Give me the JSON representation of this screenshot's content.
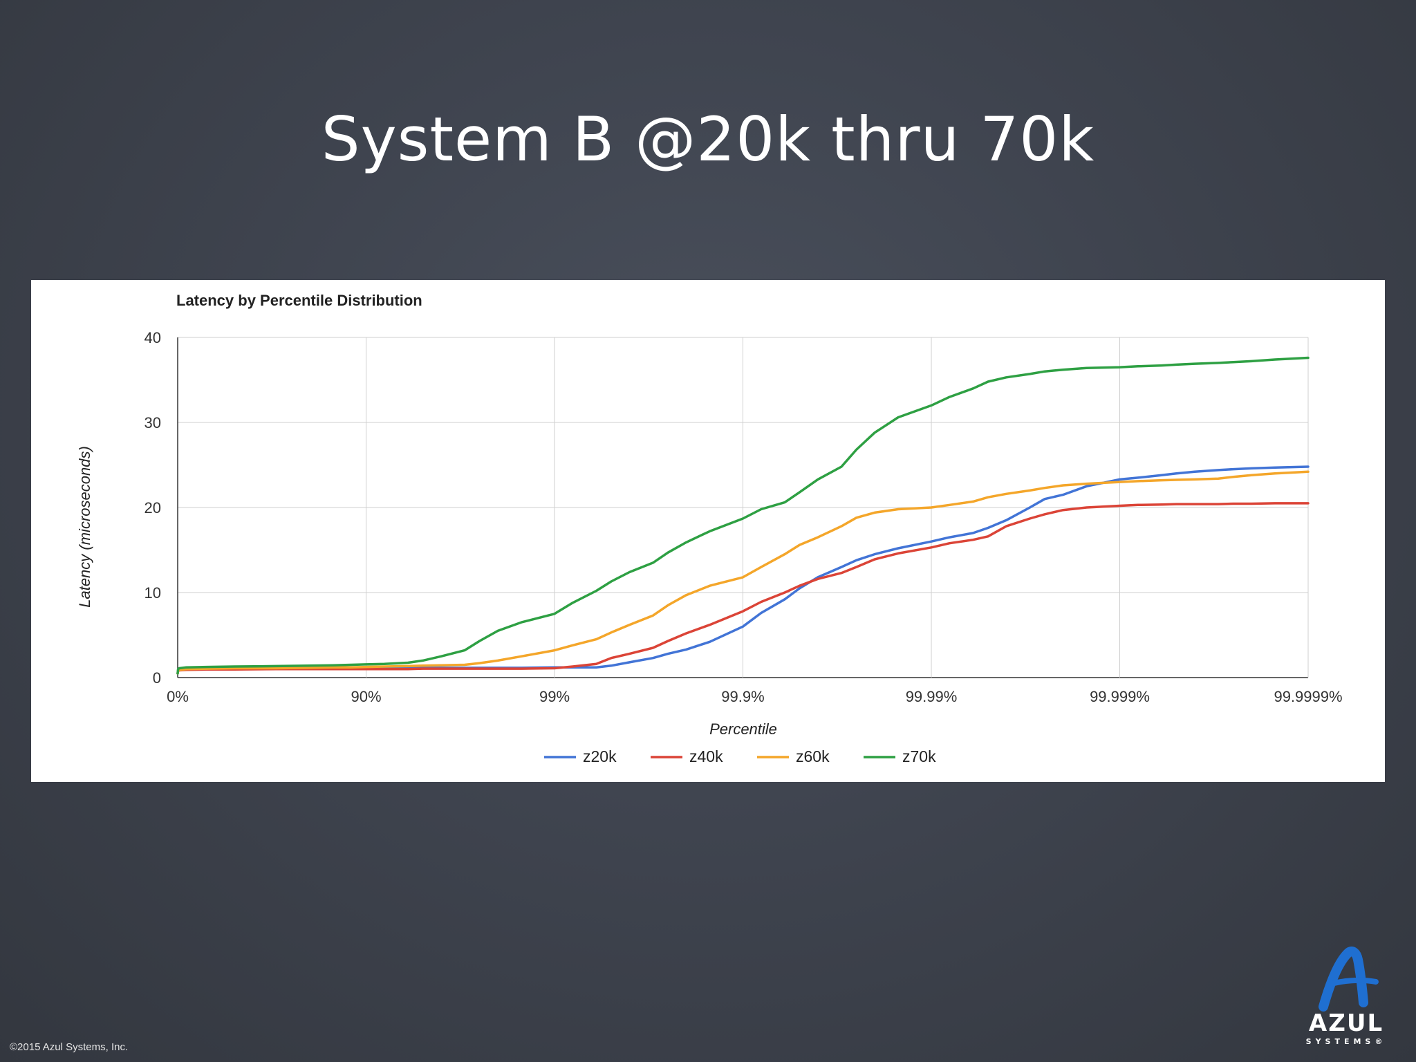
{
  "slide": {
    "title": "System B @20k thru 70k",
    "footer": "©2015 Azul Systems, Inc.",
    "logo_text": "AZUL",
    "logo_subtext": "SYSTEMS®"
  },
  "chart_data": {
    "type": "line",
    "title": "Latency by Percentile Distribution",
    "xlabel": "Percentile",
    "ylabel": "Latency (microseconds)",
    "x_scale": "log-percentile",
    "x_ticks": [
      "0%",
      "90%",
      "99%",
      "99.9%",
      "99.99%",
      "99.999%",
      "99.9999%"
    ],
    "y_ticks": [
      "0",
      "10",
      "20",
      "30",
      "40"
    ],
    "ylim": [
      0,
      40
    ],
    "grid": true,
    "legend_position": "bottom",
    "x": [
      "0%",
      "0.5%",
      "2%",
      "10%",
      "30%",
      "50%",
      "70%",
      "80%",
      "85%",
      "88%",
      "90%",
      "92%",
      "94%",
      "95%",
      "96%",
      "97%",
      "97.5%",
      "98%",
      "98.5%",
      "99%",
      "99.2%",
      "99.4%",
      "99.5%",
      "99.6%",
      "99.7%",
      "99.75%",
      "99.8%",
      "99.85%",
      "99.9%",
      "99.92%",
      "99.94%",
      "99.95%",
      "99.96%",
      "99.97%",
      "99.975%",
      "99.98%",
      "99.985%",
      "99.99%",
      "99.992%",
      "99.994%",
      "99.995%",
      "99.996%",
      "99.997%",
      "99.9975%",
      "99.998%",
      "99.9985%",
      "99.999%",
      "99.9992%",
      "99.9994%",
      "99.9995%",
      "99.9996%",
      "99.9997%",
      "99.99975%",
      "99.9998%",
      "99.99985%",
      "99.9999%"
    ],
    "series": [
      {
        "name": "z20k",
        "color": "#4274d6",
        "values": [
          0.5,
          0.8,
          0.9,
          1.0,
          1.0,
          1.05,
          1.05,
          1.1,
          1.1,
          1.1,
          1.15,
          1.15,
          1.15,
          1.15,
          1.15,
          1.15,
          1.15,
          1.15,
          1.15,
          1.2,
          1.2,
          1.2,
          1.4,
          1.8,
          2.3,
          2.8,
          3.3,
          4.2,
          6.0,
          7.6,
          9.2,
          10.5,
          11.8,
          13.0,
          13.8,
          14.5,
          15.2,
          16.0,
          16.5,
          17.0,
          17.6,
          18.5,
          20.0,
          21.0,
          21.5,
          22.5,
          23.3,
          23.5,
          23.8,
          24.0,
          24.2,
          24.4,
          24.5,
          24.6,
          24.7,
          24.8
        ]
      },
      {
        "name": "z40k",
        "color": "#db4437",
        "values": [
          0.5,
          0.8,
          0.85,
          0.9,
          0.95,
          0.95,
          1.0,
          1.0,
          1.0,
          1.0,
          1.0,
          1.0,
          1.0,
          1.05,
          1.05,
          1.05,
          1.05,
          1.05,
          1.05,
          1.1,
          1.3,
          1.6,
          2.3,
          2.8,
          3.5,
          4.3,
          5.2,
          6.2,
          7.8,
          8.9,
          10.0,
          10.8,
          11.6,
          12.3,
          13.0,
          13.9,
          14.6,
          15.3,
          15.8,
          16.2,
          16.6,
          17.8,
          18.7,
          19.2,
          19.7,
          20.0,
          20.2,
          20.3,
          20.35,
          20.4,
          20.4,
          20.4,
          20.45,
          20.45,
          20.5,
          20.5
        ]
      },
      {
        "name": "z60k",
        "color": "#f4a62a",
        "values": [
          0.5,
          0.8,
          0.9,
          1.0,
          1.05,
          1.1,
          1.1,
          1.15,
          1.2,
          1.2,
          1.25,
          1.3,
          1.35,
          1.4,
          1.45,
          1.5,
          1.7,
          2.0,
          2.5,
          3.2,
          3.8,
          4.5,
          5.3,
          6.2,
          7.3,
          8.5,
          9.7,
          10.8,
          11.8,
          13.0,
          14.5,
          15.6,
          16.5,
          17.8,
          18.8,
          19.4,
          19.8,
          20.0,
          20.3,
          20.7,
          21.2,
          21.6,
          22.0,
          22.3,
          22.6,
          22.8,
          23.0,
          23.1,
          23.2,
          23.25,
          23.3,
          23.4,
          23.6,
          23.8,
          24.0,
          24.2
        ]
      },
      {
        "name": "z70k",
        "color": "#2ea043",
        "values": [
          0.5,
          1.0,
          1.1,
          1.2,
          1.25,
          1.3,
          1.35,
          1.4,
          1.45,
          1.5,
          1.55,
          1.6,
          1.75,
          2.0,
          2.5,
          3.2,
          4.3,
          5.5,
          6.5,
          7.5,
          8.8,
          10.2,
          11.3,
          12.4,
          13.5,
          14.7,
          15.9,
          17.2,
          18.7,
          19.8,
          20.6,
          21.8,
          23.3,
          24.8,
          26.8,
          28.8,
          30.6,
          32.0,
          33.0,
          34.0,
          34.8,
          35.3,
          35.7,
          36.0,
          36.2,
          36.4,
          36.5,
          36.6,
          36.7,
          36.8,
          36.9,
          37.0,
          37.1,
          37.2,
          37.4,
          37.6
        ]
      }
    ]
  }
}
